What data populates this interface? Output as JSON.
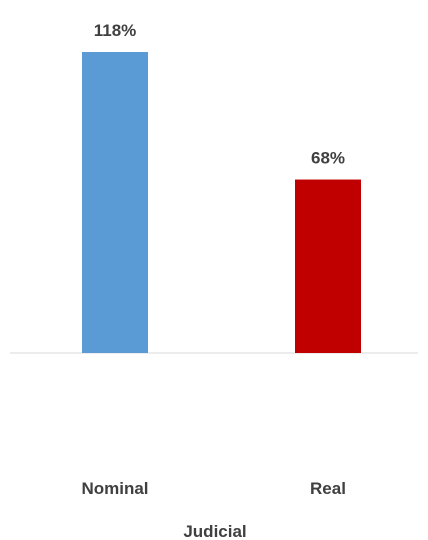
{
  "chart_data": {
    "type": "bar",
    "categories": [
      "Nominal",
      "Real"
    ],
    "values": [
      118,
      68
    ],
    "data_labels": [
      "118%",
      "68%"
    ],
    "colors": [
      "#5b9bd5",
      "#c00000"
    ],
    "xlabel": "Judicial",
    "ylabel": "",
    "title": "",
    "ylim": [
      0,
      118
    ],
    "grid": false,
    "legend": "none"
  }
}
